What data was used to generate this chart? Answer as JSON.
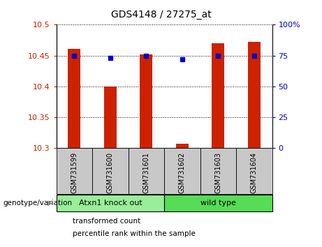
{
  "title": "GDS4148 / 27275_at",
  "samples": [
    "GSM731599",
    "GSM731600",
    "GSM731601",
    "GSM731602",
    "GSM731603",
    "GSM731604"
  ],
  "transformed_counts": [
    10.461,
    10.4,
    10.452,
    10.307,
    10.47,
    10.472
  ],
  "percentile_ranks": [
    75,
    73,
    75,
    72,
    75,
    75
  ],
  "ylim_left": [
    10.3,
    10.5
  ],
  "ylim_right": [
    0,
    100
  ],
  "yticks_left": [
    10.3,
    10.35,
    10.4,
    10.45,
    10.5
  ],
  "yticks_right": [
    0,
    25,
    50,
    75,
    100
  ],
  "ytick_labels_left": [
    "10.3",
    "10.35",
    "10.4",
    "10.45",
    "10.5"
  ],
  "ytick_labels_right": [
    "0",
    "25",
    "50",
    "75",
    "100%"
  ],
  "bar_color": "#cc2200",
  "dot_color": "#0000cc",
  "grid_color": "#000000",
  "plot_bg_color": "#ffffff",
  "sample_box_color": "#c8c8c8",
  "group1_color": "#99ee99",
  "group2_color": "#55dd55",
  "group1_label": "Atxn1 knock out",
  "group2_label": "wild type",
  "genotype_label": "genotype/variation",
  "legend_tc": "transformed count",
  "legend_pr": "percentile rank within the sample",
  "bar_width": 0.35,
  "dot_size": 25,
  "title_fontsize": 10,
  "tick_fontsize": 8,
  "label_fontsize": 7,
  "group_fontsize": 8,
  "legend_fontsize": 7.5
}
